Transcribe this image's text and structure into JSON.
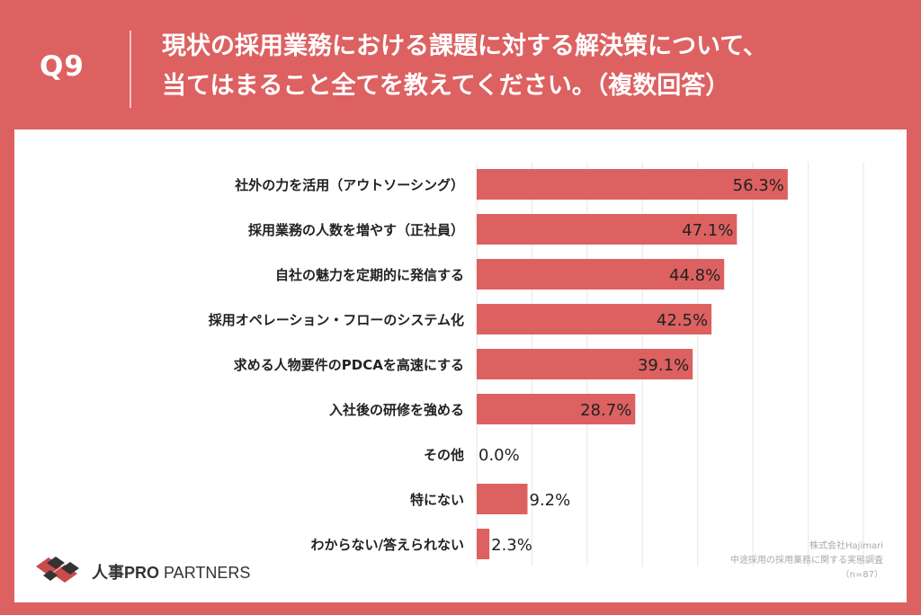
{
  "question": {
    "number": "Q9",
    "line1": "現状の採用業務における課題に対する解決策について、",
    "line2": "当てはまること全てを教えてください。（複数回答）"
  },
  "chart_data": {
    "type": "bar",
    "orientation": "horizontal",
    "categories": [
      "社外の力を活用（アウトソーシング）",
      "採用業務の人数を増やす（正社員）",
      "自社の魅力を定期的に発信する",
      "採用オペレーション・フローのシステム化",
      "求める人物要件のPDCAを高速にする",
      "入社後の研修を強める",
      "その他",
      "特にない",
      "わからない/答えられない"
    ],
    "values": [
      56.3,
      47.1,
      44.8,
      42.5,
      39.1,
      28.7,
      0.0,
      9.2,
      2.3
    ],
    "labels": [
      "56.3%",
      "47.1%",
      "44.8%",
      "42.5%",
      "39.1%",
      "28.7%",
      "0.0%",
      "9.2%",
      "2.3%"
    ],
    "xlim": [
      0,
      70
    ],
    "grid": true,
    "bar_color": "#dd6161"
  },
  "logo": {
    "part1": "人事",
    "part2": "PRO",
    "part3": " PARTNERS"
  },
  "source": {
    "line1": "株式会社Hajimari",
    "line2": "中途採用の採用業務に関する実態調査",
    "line3": "（n=87）"
  },
  "colors": {
    "header": "#dd6161",
    "panel": "#ffffff",
    "text": "#222222",
    "grid": "#e6e6e6"
  }
}
